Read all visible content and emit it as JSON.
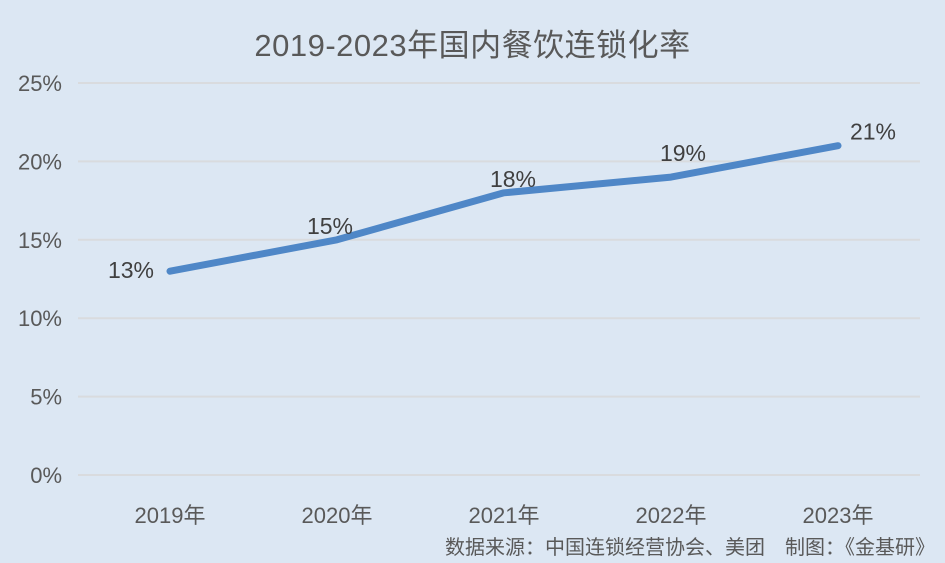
{
  "title": "2019-2023年国内餐饮连锁化率",
  "source_note": "数据来源：中国连锁经营协会、美团　制图：《金基研》",
  "colors": {
    "background": "#dce7f3",
    "line": "#4f87c7",
    "gridline": "#d9dbde",
    "title_text": "#595959",
    "axis_text": "#595959",
    "label_text": "#404040"
  },
  "chart_data": {
    "type": "line",
    "title": "2019-2023年国内餐饮连锁化率",
    "categories": [
      "2019年",
      "2020年",
      "2021年",
      "2022年",
      "2023年"
    ],
    "series": [
      {
        "name": "国内餐饮连锁化率",
        "values": [
          13,
          15,
          18,
          19,
          21
        ]
      }
    ],
    "data_labels": [
      "13%",
      "15%",
      "18%",
      "19%",
      "21%"
    ],
    "xlabel": "",
    "ylabel": "",
    "ylim": [
      0,
      25
    ],
    "yticks": [
      0,
      5,
      10,
      15,
      20,
      25
    ],
    "ytick_labels": [
      "0%",
      "5%",
      "10%",
      "15%",
      "20%",
      "25%"
    ],
    "grid": true,
    "legend": "none"
  }
}
